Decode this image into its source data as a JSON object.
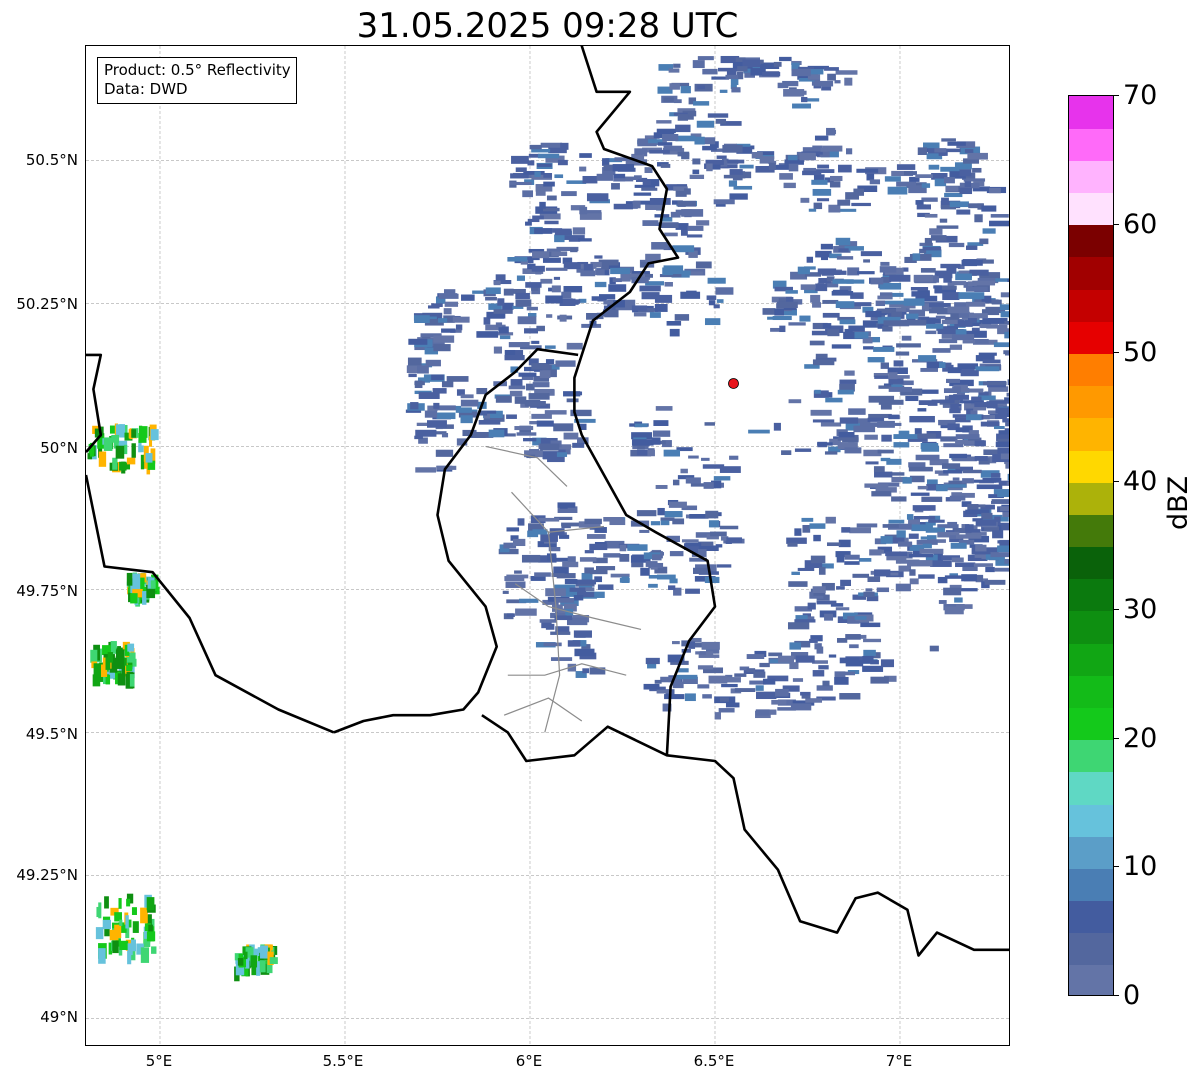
{
  "title": "31.05.2025 09:28 UTC",
  "info": {
    "product_line": "Product: 0.5° Reflectivity",
    "data_line": "Data: DWD"
  },
  "axes": {
    "lon_ticks": [
      "5°E",
      "5.5°E",
      "6°E",
      "6.5°E",
      "7°E"
    ],
    "lat_ticks": [
      "50.5°N",
      "50.25°N",
      "50°N",
      "49.75°N",
      "49.5°N",
      "49.25°N",
      "49°N"
    ],
    "lon_range": [
      4.8,
      7.3
    ],
    "lat_range": [
      48.95,
      50.7
    ]
  },
  "radar_site": {
    "lon": 6.55,
    "lat": 50.11,
    "color": "#e8141b"
  },
  "colorbar": {
    "label": "dBZ",
    "ticks": [
      "0",
      "10",
      "20",
      "30",
      "40",
      "50",
      "60",
      "70"
    ],
    "range": [
      0,
      70
    ],
    "colors": [
      "#6374a7",
      "#53679e",
      "#435c9f",
      "#4a7eb4",
      "#5b9ec8",
      "#66c2dc",
      "#5fd8c4",
      "#3ed673",
      "#14c91b",
      "#13bb18",
      "#11a614",
      "#0e8f11",
      "#0b7a0e",
      "#0a620a",
      "#447a0a",
      "#acb20a",
      "#ffd800",
      "#ffb400",
      "#ff9900",
      "#ff7e00",
      "#e60000",
      "#c40000",
      "#a10000",
      "#7b0000",
      "#ffe1fe",
      "#ffb3fe",
      "#ff6af9",
      "#e733ec"
    ]
  }
}
